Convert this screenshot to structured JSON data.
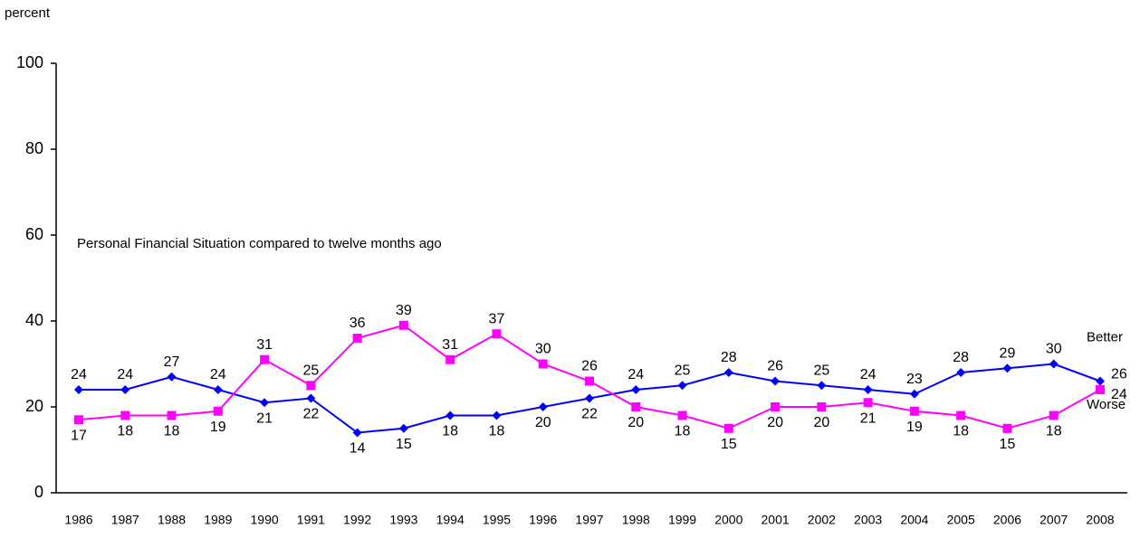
{
  "chart_data": {
    "type": "line",
    "y_label": "percent",
    "annotation": "Personal Financial Situation compared to twelve months ago",
    "categories": [
      "1986",
      "1987",
      "1988",
      "1989",
      "1990",
      "1991",
      "1992",
      "1993",
      "1994",
      "1995",
      "1996",
      "1997",
      "1998",
      "1999",
      "2000",
      "2001",
      "2002",
      "2003",
      "2004",
      "2005",
      "2006",
      "2007",
      "2008"
    ],
    "series": [
      {
        "name": "Better",
        "color": "#0000ff",
        "marker": "diamond",
        "values": [
          24,
          24,
          27,
          24,
          21,
          22,
          14,
          15,
          18,
          18,
          20,
          22,
          24,
          25,
          28,
          26,
          25,
          24,
          23,
          28,
          29,
          30,
          26
        ]
      },
      {
        "name": "Worse",
        "color": "#ff00ff",
        "marker": "square",
        "values": [
          17,
          18,
          18,
          19,
          31,
          25,
          36,
          39,
          31,
          37,
          30,
          26,
          20,
          18,
          15,
          20,
          20,
          21,
          19,
          18,
          15,
          18,
          24
        ]
      }
    ],
    "ylim": [
      0,
      100
    ],
    "yticks": [
      0,
      20,
      40,
      60,
      80,
      100
    ],
    "grid": false
  }
}
